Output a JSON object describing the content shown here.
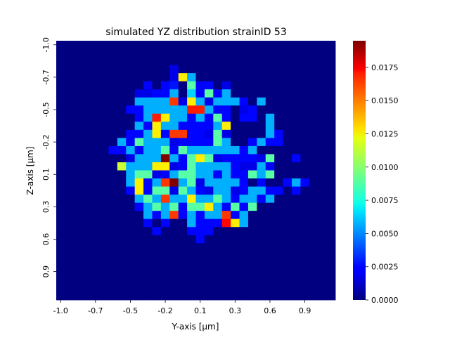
{
  "chart_data": {
    "type": "heatmap",
    "title": "simulated YZ distribution strainID 53",
    "xlabel": "Y-axis [μm]",
    "ylabel": "Z-axis [μm]",
    "x_tick_labels": [
      "-1.0",
      "-0.7",
      "-0.5",
      "-0.2",
      "0.1",
      "0.3",
      "0.6",
      "0.9"
    ],
    "y_tick_labels": [
      "-1.0",
      "-0.7",
      "-0.5",
      "-0.2",
      "0.1",
      "0.3",
      "0.6",
      "0.9"
    ],
    "colorbar": {
      "colormap": "jet",
      "range": [
        0,
        0.0195
      ],
      "tick_labels": [
        "0.0000",
        "0.0025",
        "0.0050",
        "0.0075",
        "0.0100",
        "0.0125",
        "0.0150",
        "0.0175"
      ]
    },
    "grid": "off",
    "x_range_um": [
      -1.0,
      1.0
    ],
    "y_range_um": [
      -1.0,
      1.0
    ],
    "n_bins": 32,
    "values": [
      [
        0,
        0,
        0,
        0,
        0,
        0,
        0,
        0,
        0,
        0,
        0,
        0,
        0,
        0,
        0,
        0,
        0,
        0,
        0,
        0,
        0,
        0,
        0,
        0,
        0,
        0,
        0,
        0,
        0,
        0,
        0,
        0
      ],
      [
        0,
        0,
        0,
        0,
        0,
        0,
        0,
        0,
        0,
        0,
        0,
        0,
        0,
        0,
        0,
        0,
        0,
        0,
        0,
        0,
        0,
        0,
        0,
        0,
        0,
        0,
        0,
        0,
        0,
        0,
        0,
        0
      ],
      [
        0,
        0,
        0,
        0,
        0,
        0,
        0,
        0,
        0,
        0,
        0,
        0,
        0,
        0,
        0,
        0,
        0,
        0,
        0,
        0,
        0,
        0,
        0,
        0,
        0,
        0,
        0,
        0,
        0,
        0,
        0,
        0
      ],
      [
        0,
        0,
        0,
        0,
        0,
        0,
        0,
        0,
        0,
        0,
        0,
        0,
        0,
        0.002,
        0,
        0,
        0,
        0,
        0,
        0,
        0,
        0,
        0,
        0,
        0,
        0,
        0,
        0,
        0,
        0,
        0,
        0
      ],
      [
        0,
        0,
        0,
        0,
        0,
        0,
        0,
        0,
        0,
        0,
        0,
        0,
        0,
        0.002,
        0.0125,
        0.0058,
        0,
        0,
        0,
        0,
        0,
        0,
        0,
        0,
        0,
        0,
        0,
        0,
        0,
        0,
        0,
        0
      ],
      [
        0,
        0,
        0,
        0,
        0,
        0,
        0,
        0,
        0,
        0,
        0.0025,
        0,
        0.0025,
        0.0028,
        0,
        0.009,
        0.0025,
        0.0025,
        0,
        0.002,
        0,
        0,
        0,
        0,
        0,
        0,
        0,
        0,
        0,
        0,
        0,
        0
      ],
      [
        0,
        0,
        0,
        0,
        0,
        0,
        0,
        0,
        0,
        0.002,
        0.002,
        0.0025,
        0.0025,
        0.0058,
        0,
        0.0065,
        0.0025,
        0.009,
        0.0025,
        0.0058,
        0,
        0,
        0,
        0,
        0,
        0,
        0,
        0,
        0,
        0,
        0,
        0
      ],
      [
        0,
        0,
        0,
        0,
        0,
        0,
        0,
        0,
        0,
        0.0058,
        0.0058,
        0.0058,
        0.0058,
        0.016,
        0.002,
        0.0125,
        0.0058,
        0.002,
        0.0058,
        0.0058,
        0.0058,
        0.0025,
        0,
        0.0058,
        0,
        0,
        0,
        0,
        0,
        0,
        0,
        0
      ],
      [
        0,
        0,
        0,
        0,
        0,
        0,
        0,
        0,
        0.0025,
        0.0025,
        0.0058,
        0.0058,
        0.0058,
        0.0058,
        0.0058,
        0.0165,
        0.0165,
        0.0058,
        0.0025,
        0.0025,
        0,
        0.002,
        0.0025,
        0,
        0,
        0,
        0,
        0,
        0,
        0,
        0,
        0
      ],
      [
        0,
        0,
        0,
        0,
        0,
        0,
        0,
        0,
        0,
        0.0025,
        0.0058,
        0.0165,
        0.0125,
        0.0058,
        0.0058,
        0.0025,
        0.0058,
        0.0025,
        0.009,
        0.0025,
        0,
        0.0025,
        0.0025,
        0,
        0.0058,
        0,
        0,
        0,
        0,
        0,
        0,
        0
      ],
      [
        0,
        0,
        0,
        0,
        0,
        0,
        0,
        0,
        0,
        0.0058,
        0.0025,
        0.0125,
        0.0058,
        0.0058,
        0.0025,
        0.0025,
        0.0025,
        0.0025,
        0.0058,
        0.0125,
        0,
        0,
        0,
        0,
        0.0058,
        0,
        0,
        0,
        0,
        0,
        0,
        0
      ],
      [
        0,
        0,
        0,
        0,
        0,
        0,
        0,
        0,
        0.0025,
        0.0025,
        0.0058,
        0.0125,
        0.0025,
        0.016,
        0.016,
        0.0025,
        0.0025,
        0.002,
        0.009,
        0.002,
        0,
        0,
        0,
        0,
        0.0058,
        0.0025,
        0,
        0,
        0,
        0,
        0,
        0
      ],
      [
        0,
        0,
        0,
        0,
        0,
        0,
        0,
        0.0058,
        0.0025,
        0.009,
        0.0058,
        0.0058,
        0.0058,
        0.002,
        0.0025,
        0.0025,
        0.0025,
        0.0025,
        0.009,
        0.0058,
        0,
        0,
        0.0025,
        0.0058,
        0.0025,
        0.0025,
        0,
        0,
        0,
        0,
        0,
        0
      ],
      [
        0,
        0,
        0,
        0,
        0,
        0,
        0.0025,
        0.0025,
        0.0058,
        0.0025,
        0.0058,
        0.0058,
        0.009,
        0.0025,
        0.009,
        0.0058,
        0.0058,
        0.0058,
        0.0058,
        0.0058,
        0.0058,
        0.0025,
        0.0058,
        0,
        0,
        0,
        0,
        0,
        0,
        0,
        0,
        0
      ],
      [
        0,
        0,
        0,
        0,
        0,
        0,
        0,
        0,
        0.002,
        0.0058,
        0.0058,
        0.0058,
        0.0195,
        0.0058,
        0.0025,
        0.009,
        0.0125,
        0.009,
        0.002,
        0.0025,
        0.0025,
        0.0025,
        0.0025,
        0.002,
        0.009,
        0,
        0,
        0.0025,
        0,
        0,
        0,
        0
      ],
      [
        0,
        0,
        0,
        0,
        0,
        0,
        0,
        0.0112,
        0.0058,
        0.0058,
        0.0058,
        0.0125,
        0.0125,
        0.002,
        0.0025,
        0.009,
        0.0058,
        0.0058,
        0.0058,
        0.0058,
        0.0025,
        0.002,
        0.002,
        0.0058,
        0.0025,
        0,
        0,
        0,
        0,
        0,
        0,
        0
      ],
      [
        0,
        0,
        0,
        0,
        0,
        0,
        0,
        0,
        0.0058,
        0.009,
        0.009,
        0.002,
        0.0025,
        0.0058,
        0.009,
        0.009,
        0.0058,
        0.0058,
        0.0025,
        0.0058,
        0.0025,
        0.0025,
        0.009,
        0.0058,
        0.009,
        0,
        0,
        0,
        0,
        0,
        0,
        0
      ],
      [
        0,
        0,
        0,
        0,
        0,
        0,
        0,
        0,
        0.0058,
        0.0125,
        0.0025,
        0.0058,
        0.016,
        0.0195,
        0.0058,
        0.009,
        0.002,
        0.0058,
        0.0058,
        0.0058,
        0.0058,
        0.0025,
        0,
        0.0025,
        0,
        0,
        0.0025,
        0.0058,
        0.0025,
        0,
        0,
        0
      ],
      [
        0,
        0,
        0,
        0,
        0,
        0,
        0,
        0,
        0.0025,
        0.0125,
        0.0025,
        0.009,
        0.009,
        0.002,
        0.009,
        0.0058,
        0.0025,
        0.002,
        0.0058,
        0.0058,
        0.002,
        0.0025,
        0.0058,
        0.0058,
        0.0025,
        0.0025,
        0,
        0.0025,
        0,
        0,
        0,
        0
      ],
      [
        0,
        0,
        0,
        0,
        0,
        0,
        0,
        0,
        0,
        0.0058,
        0.009,
        0.0058,
        0.016,
        0.0058,
        0.0058,
        0.0125,
        0.0058,
        0.0058,
        0.009,
        0.0058,
        0.0025,
        0.0058,
        0.0058,
        0.0025,
        0.0058,
        0,
        0,
        0,
        0,
        0,
        0,
        0
      ],
      [
        0,
        0,
        0,
        0,
        0,
        0,
        0,
        0,
        0,
        0.0025,
        0.0058,
        0.009,
        0.0058,
        0.009,
        0.0025,
        0.009,
        0.009,
        0.0125,
        0.0058,
        0.0025,
        0.009,
        0.0025,
        0.009,
        0,
        0,
        0,
        0,
        0,
        0,
        0,
        0,
        0
      ],
      [
        0,
        0,
        0,
        0,
        0,
        0,
        0,
        0,
        0,
        0,
        0.0058,
        0.0025,
        0.0058,
        0.016,
        0.0025,
        0.0058,
        0.0025,
        0.0058,
        0.0058,
        0.016,
        0.0025,
        0.0058,
        0,
        0,
        0,
        0,
        0,
        0,
        0,
        0,
        0,
        0
      ],
      [
        0,
        0,
        0,
        0,
        0,
        0,
        0,
        0,
        0,
        0,
        0.0025,
        0,
        0.0025,
        0,
        0,
        0.0058,
        0.0025,
        0.0025,
        0.0025,
        0.017,
        0.0125,
        0.0058,
        0,
        0,
        0,
        0,
        0,
        0,
        0,
        0,
        0,
        0
      ],
      [
        0,
        0,
        0,
        0,
        0,
        0,
        0,
        0,
        0,
        0,
        0,
        0.0025,
        0,
        0,
        0,
        0.0025,
        0.0025,
        0.0025,
        0,
        0,
        0,
        0,
        0,
        0,
        0,
        0,
        0,
        0,
        0,
        0,
        0,
        0
      ],
      [
        0,
        0,
        0,
        0,
        0,
        0,
        0,
        0,
        0,
        0,
        0,
        0,
        0,
        0,
        0,
        0,
        0.0025,
        0,
        0,
        0,
        0,
        0,
        0,
        0,
        0,
        0,
        0,
        0,
        0,
        0,
        0,
        0
      ],
      [
        0,
        0,
        0,
        0,
        0,
        0,
        0,
        0,
        0,
        0,
        0,
        0,
        0,
        0,
        0,
        0,
        0,
        0,
        0,
        0,
        0,
        0,
        0,
        0,
        0,
        0,
        0,
        0,
        0,
        0,
        0,
        0
      ],
      [
        0,
        0,
        0,
        0,
        0,
        0,
        0,
        0,
        0,
        0,
        0,
        0,
        0,
        0,
        0,
        0,
        0,
        0,
        0,
        0,
        0,
        0,
        0,
        0,
        0,
        0,
        0,
        0,
        0,
        0,
        0,
        0
      ],
      [
        0,
        0,
        0,
        0,
        0,
        0,
        0,
        0,
        0,
        0,
        0,
        0,
        0,
        0,
        0,
        0,
        0,
        0,
        0,
        0,
        0,
        0,
        0,
        0,
        0,
        0,
        0,
        0,
        0,
        0,
        0,
        0
      ],
      [
        0,
        0,
        0,
        0,
        0,
        0,
        0,
        0,
        0,
        0,
        0,
        0,
        0,
        0,
        0,
        0,
        0,
        0,
        0,
        0,
        0,
        0,
        0,
        0,
        0,
        0,
        0,
        0,
        0,
        0,
        0,
        0
      ],
      [
        0,
        0,
        0,
        0,
        0,
        0,
        0,
        0,
        0,
        0,
        0,
        0,
        0,
        0,
        0,
        0,
        0,
        0,
        0,
        0,
        0,
        0,
        0,
        0,
        0,
        0,
        0,
        0,
        0,
        0,
        0,
        0
      ],
      [
        0,
        0,
        0,
        0,
        0,
        0,
        0,
        0,
        0,
        0,
        0,
        0,
        0,
        0,
        0,
        0,
        0,
        0,
        0,
        0,
        0,
        0,
        0,
        0,
        0,
        0,
        0,
        0,
        0,
        0,
        0,
        0
      ],
      [
        0,
        0,
        0,
        0,
        0,
        0,
        0,
        0,
        0,
        0,
        0,
        0,
        0,
        0,
        0,
        0,
        0,
        0,
        0,
        0,
        0,
        0,
        0,
        0,
        0,
        0,
        0,
        0,
        0,
        0,
        0,
        0
      ]
    ]
  }
}
